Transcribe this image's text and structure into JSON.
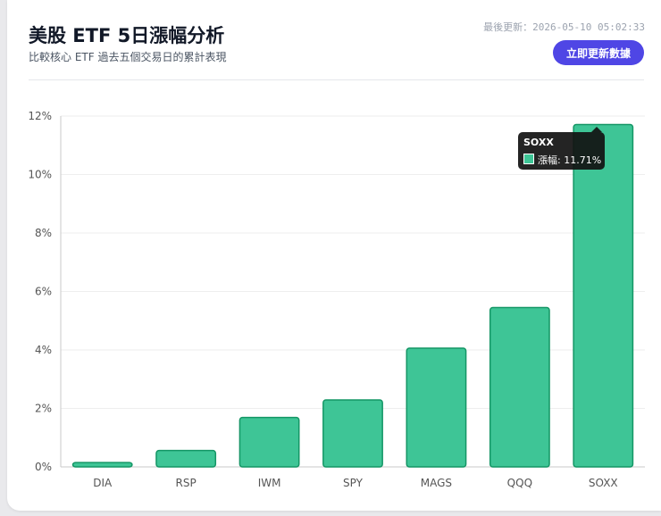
{
  "header": {
    "title": "美股 ETF 5日漲幅分析",
    "subtitle": "比較核心 ETF 過去五個交易日的累計表現",
    "last_updated": "最後更新：2026-05-10 05:02:33",
    "refresh_label": "立即更新數據"
  },
  "colors": {
    "bar_fill": "#3ec596",
    "bar_stroke": "#149665",
    "button": "#4f46e5"
  },
  "chart_data": {
    "type": "bar",
    "categories": [
      "DIA",
      "RSP",
      "IWM",
      "SPY",
      "MAGS",
      "QQQ",
      "SOXX"
    ],
    "series": [
      {
        "name": "漲幅",
        "values": [
          0.15,
          0.56,
          1.69,
          2.29,
          4.06,
          5.45,
          11.71
        ]
      }
    ],
    "ylim": [
      0,
      12
    ],
    "yticks": [
      0,
      2,
      4,
      6,
      8,
      10,
      12
    ],
    "ytick_suffix": "%",
    "grid": true,
    "tooltip": {
      "category": "SOXX",
      "label": "漲幅: 11.71%"
    }
  }
}
